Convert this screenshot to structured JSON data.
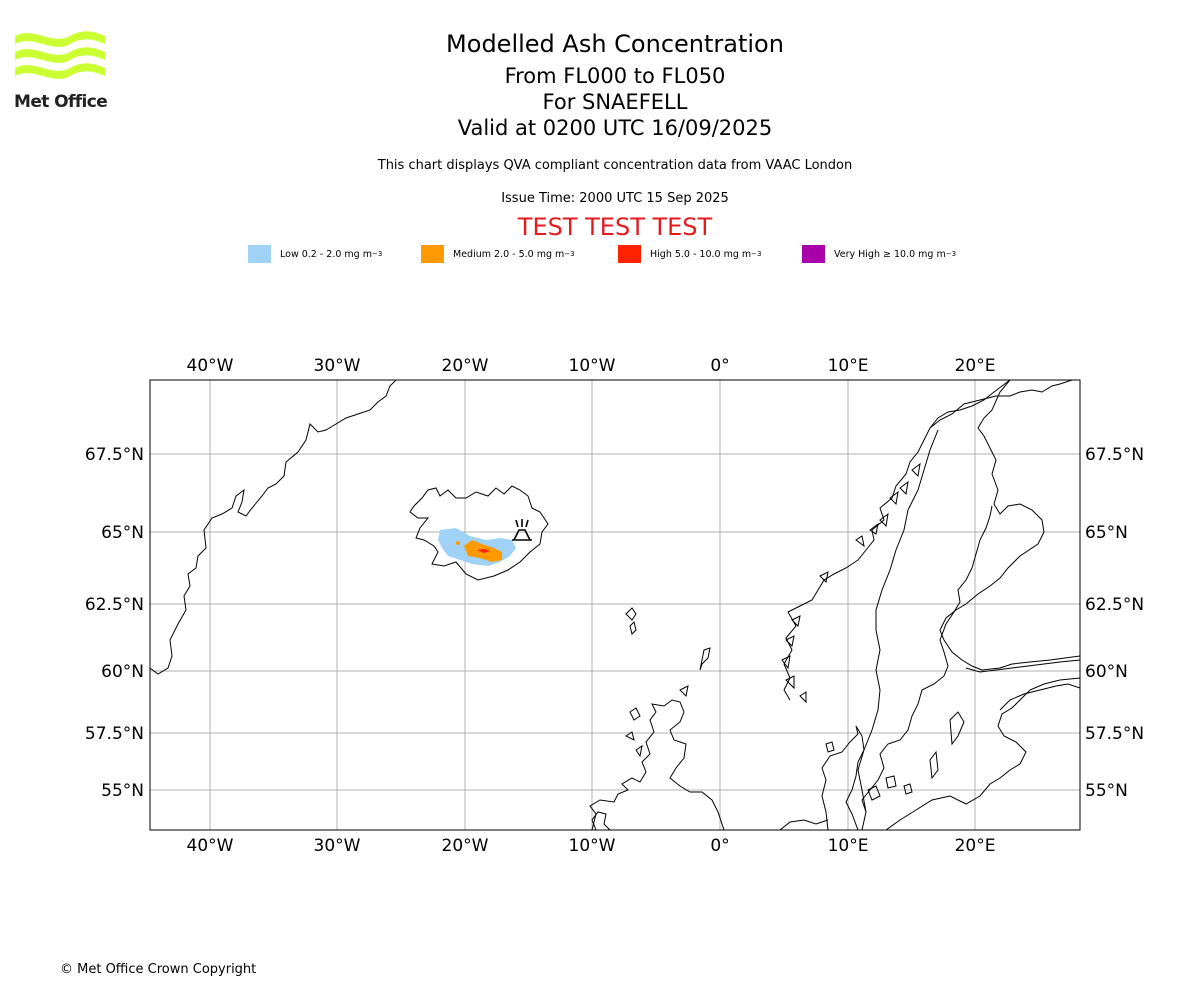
{
  "logo": {
    "text": "Met Office",
    "color": "#ccff33"
  },
  "title": "Modelled Ash Concentration",
  "levels": "From FL000 to FL050",
  "volcano": "For SNAEFELL",
  "valid": "Valid at 0200 UTC 16/09/2025",
  "description": "This chart displays QVA compliant concentration data from VAAC London",
  "issue_time": "Issue Time: 2000 UTC 15 Sep 2025",
  "test_banner": "TEST TEST TEST",
  "legend": [
    {
      "label": "Low 0.2 - 2.0 mg m",
      "sup": "−3",
      "color": "#a0d2f8"
    },
    {
      "label": "Medium 2.0 - 5.0 mg m",
      "sup": "−3",
      "color": "#ff9900"
    },
    {
      "label": "High 5.0 - 10.0 mg m",
      "sup": "−3",
      "color": "#ff2200"
    },
    {
      "label": "Very High ≥ 10.0 mg m",
      "sup": "−3",
      "color": "#aa00aa"
    }
  ],
  "map": {
    "lon_labels": [
      "40°W",
      "30°W",
      "20°W",
      "10°W",
      "0°",
      "10°E",
      "20°E"
    ],
    "lat_labels": [
      "67.5°N",
      "65°N",
      "62.5°N",
      "60°N",
      "57.5°N",
      "55°N"
    ],
    "volcano_icon": "volcano-icon"
  },
  "copyright": "© Met Office Crown Copyright"
}
